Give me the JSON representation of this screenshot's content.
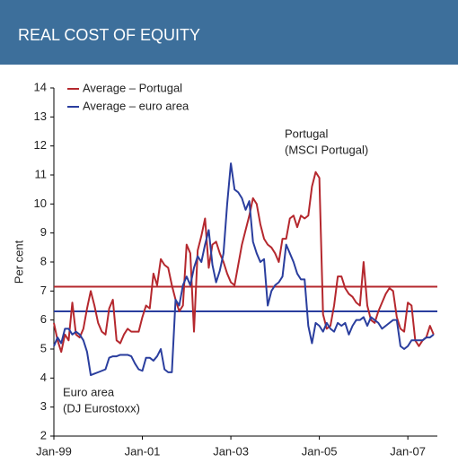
{
  "chart_data": {
    "type": "line",
    "title": "REAL COST OF EQUITY",
    "ylabel": "Per cent",
    "ylim": [
      2,
      14
    ],
    "yticks": [
      2,
      3,
      4,
      5,
      6,
      7,
      8,
      9,
      10,
      11,
      12,
      13,
      14
    ],
    "xlim": [
      "1999-01",
      "2007-09"
    ],
    "xticks": [
      {
        "value": "1999-01",
        "label": "Jan-99"
      },
      {
        "value": "2001-01",
        "label": "Jan-01"
      },
      {
        "value": "2003-01",
        "label": "Jan-03"
      },
      {
        "value": "2005-01",
        "label": "Jan-05"
      },
      {
        "value": "2007-01",
        "label": "Jan-07"
      }
    ],
    "x_start": "1999-01",
    "series": [
      {
        "color": "#b5282e",
        "values": [
          5.9,
          5.3,
          4.9,
          5.5,
          5.3,
          6.6,
          5.5,
          5.4,
          5.7,
          6.4,
          7.0,
          6.5,
          5.9,
          5.6,
          5.5,
          6.4,
          6.7,
          5.3,
          5.2,
          5.5,
          5.7,
          5.6,
          5.6,
          5.6,
          6.1,
          6.5,
          6.4,
          7.6,
          7.2,
          8.1,
          7.9,
          7.8,
          7.2,
          6.7,
          6.3,
          6.5,
          8.6,
          8.3,
          5.6,
          8.4,
          8.9,
          9.5,
          7.8,
          8.6,
          8.7,
          8.3,
          8.0,
          7.6,
          7.3,
          7.2,
          7.9,
          8.6,
          9.1,
          9.6,
          10.2,
          10.0,
          9.3,
          8.8,
          8.6,
          8.5,
          8.3,
          8.0,
          8.8,
          8.8,
          9.5,
          9.6,
          9.2,
          9.6,
          9.5,
          9.6,
          10.6,
          11.1,
          10.9,
          6.2,
          5.7,
          5.8,
          6.5,
          7.5,
          7.5,
          7.1,
          6.9,
          6.8,
          6.6,
          6.5,
          8.0,
          6.5,
          6.0,
          5.9,
          6.3,
          6.6,
          6.9,
          7.1,
          7.0,
          6.1,
          5.7,
          5.6,
          6.6,
          6.5,
          5.3,
          5.1,
          5.3,
          5.4,
          5.8,
          5.5
        ]
      },
      {
        "color": "#2a3e9e",
        "values": [
          5.1,
          5.4,
          5.2,
          5.7,
          5.7,
          5.5,
          5.6,
          5.5,
          5.3,
          4.9,
          4.1,
          4.15,
          4.2,
          4.25,
          4.3,
          4.7,
          4.75,
          4.75,
          4.8,
          4.8,
          4.8,
          4.75,
          4.5,
          4.3,
          4.25,
          4.7,
          4.7,
          4.6,
          4.75,
          5.0,
          4.3,
          4.2,
          4.2,
          6.7,
          6.5,
          7.2,
          7.5,
          7.2,
          7.8,
          8.2,
          8.0,
          8.6,
          9.1,
          7.9,
          7.3,
          7.7,
          8.3,
          10.0,
          11.4,
          10.5,
          10.4,
          10.2,
          9.8,
          10.1,
          8.7,
          8.3,
          8.0,
          8.1,
          6.5,
          7.0,
          7.2,
          7.3,
          7.5,
          8.6,
          8.3,
          8.0,
          7.6,
          7.4,
          7.4,
          5.8,
          5.2,
          5.9,
          5.8,
          5.6,
          5.9,
          5.7,
          5.6,
          5.9,
          5.8,
          5.9,
          5.5,
          5.8,
          6.0,
          6.0,
          6.1,
          5.8,
          6.1,
          6.0,
          5.9,
          5.7,
          5.8,
          5.9,
          6.0,
          6.0,
          5.1,
          5.0,
          5.1,
          5.3,
          5.3,
          5.3,
          5.3,
          5.4,
          5.4,
          5.5
        ]
      }
    ],
    "averages": [
      {
        "name": "Average – Portugal",
        "color": "#b5282e",
        "value": 7.15
      },
      {
        "name": "Average – euro area",
        "color": "#2a3e9e",
        "value": 6.3
      }
    ],
    "annotations": [
      {
        "lines": [
          "Portugal",
          "(MSCI Portugal)"
        ]
      },
      {
        "lines": [
          "Euro area",
          "(DJ Eurostoxx)"
        ]
      }
    ],
    "legend": "upper left"
  }
}
